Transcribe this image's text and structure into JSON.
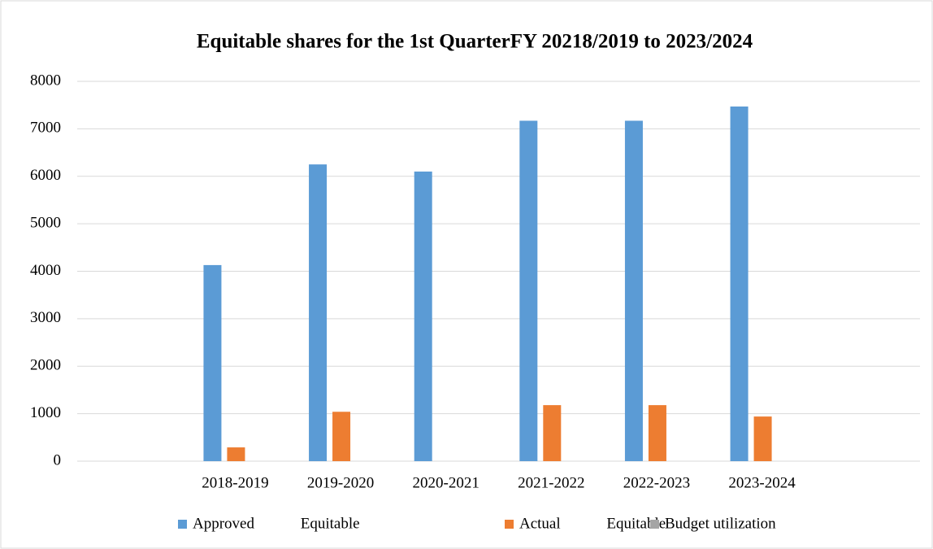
{
  "chart_data": {
    "type": "bar",
    "title": "Equitable shares for the 1st QuarterFY 20218/2019 to 2023/2024",
    "categories": [
      null,
      "2018-2019",
      "2019-2020",
      "2020-2021",
      "2021-2022",
      "2022-2023",
      "2023-2024",
      null
    ],
    "series": [
      {
        "name": "Approved Equitable",
        "color": "#5b9bd5",
        "values": [
          null,
          4130,
          6250,
          6100,
          7170,
          7170,
          7470,
          null
        ]
      },
      {
        "name": "Actual Equitable",
        "color": "#ed7d31",
        "values": [
          null,
          290,
          1040,
          null,
          1180,
          1180,
          940,
          null
        ]
      },
      {
        "name": "Budget utilization",
        "color": "#a5a5a5",
        "values": [
          null,
          null,
          null,
          null,
          null,
          null,
          null,
          null
        ]
      }
    ],
    "ylim": [
      0,
      8000
    ],
    "yticks": [
      0,
      1000,
      2000,
      3000,
      4000,
      5000,
      6000,
      7000,
      8000
    ],
    "grid": true,
    "legend": "bottom"
  }
}
